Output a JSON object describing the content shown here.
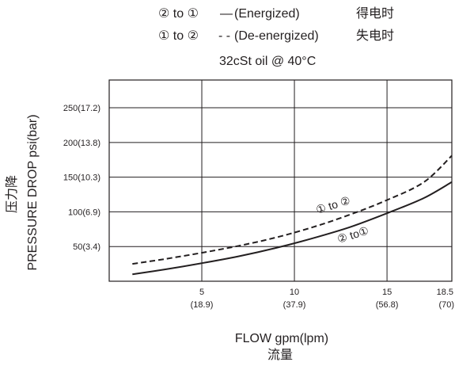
{
  "legend": [
    {
      "route": "② to ①",
      "style": "—",
      "desc": "(Energized)",
      "cn": "得电时",
      "dash": "solid"
    },
    {
      "route": "① to ②",
      "style": "- -",
      "desc": "(De-energized)",
      "cn": "失电时",
      "dash": "dashed"
    }
  ],
  "condition": "32cSt oil @ 40°C",
  "chart_data": {
    "type": "line",
    "xlabel": "FLOW gpm(lpm)",
    "xlabel_cn": "流量",
    "ylabel": "PRESSURE  DROP psi(bar)",
    "ylabel_cn": "压力降",
    "xlim": [
      0,
      18.5
    ],
    "ylim": [
      0,
      290
    ],
    "x_ticks": [
      {
        "value": 5,
        "label": "5",
        "sub": "(18.9)"
      },
      {
        "value": 10,
        "label": "10",
        "sub": "(37.9)"
      },
      {
        "value": 15,
        "label": "15",
        "sub": "(56.8)"
      },
      {
        "value": 18.5,
        "label": "18.5",
        "sub": "(70)"
      }
    ],
    "y_ticks": [
      {
        "value": 50,
        "label": "50(3.4)"
      },
      {
        "value": 100,
        "label": "100(6.9)"
      },
      {
        "value": 150,
        "label": "150(10.3)"
      },
      {
        "value": 200,
        "label": "200(13.8)"
      },
      {
        "value": 250,
        "label": "250(17.2)"
      }
    ],
    "grid": true,
    "series": [
      {
        "name": "① to ②",
        "style": "dashed",
        "x": [
          1.25,
          3,
          5,
          7,
          9,
          11,
          13,
          15,
          17,
          18.5
        ],
        "y": [
          25,
          32,
          41,
          51,
          63,
          78,
          96,
          117,
          143,
          181
        ]
      },
      {
        "name": "② to ①",
        "style": "solid",
        "x": [
          1.25,
          3,
          5,
          7,
          9,
          11,
          13,
          15,
          17,
          18.5
        ],
        "y": [
          10,
          17,
          26,
          36,
          48,
          62,
          78,
          98,
          120,
          143
        ]
      }
    ],
    "annotations": [
      {
        "text": "① to ②",
        "series": 0
      },
      {
        "text": "② to①",
        "series": 1
      }
    ]
  }
}
